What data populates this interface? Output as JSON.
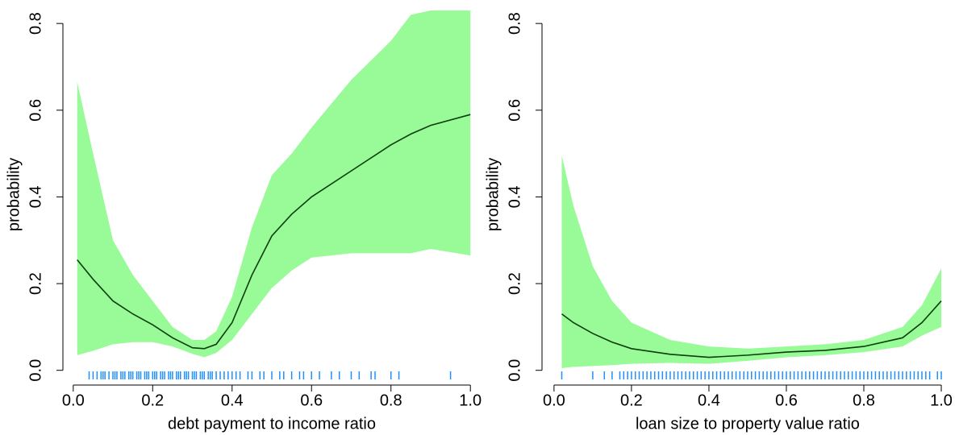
{
  "chart_data": [
    {
      "type": "line",
      "xlabel": "debt payment to income ratio",
      "ylabel": "probability",
      "xlim": [
        -0.026,
        1.028
      ],
      "ylim": [
        -0.034,
        0.83
      ],
      "xticks": [
        {
          "value": 0,
          "label": "0.0"
        },
        0.2,
        0.4,
        0.6,
        0.8,
        {
          "value": 1,
          "label": "1.0"
        }
      ],
      "yticks": [
        {
          "value": 0,
          "label": "0.0"
        },
        0.2,
        0.4,
        0.6,
        0.8
      ],
      "color": "#0b3d0b",
      "band_color": "#98fb98",
      "rug_color": "#1e90ff",
      "x": [
        0.01,
        0.05,
        0.1,
        0.15,
        0.2,
        0.25,
        0.3,
        0.33,
        0.36,
        0.4,
        0.45,
        0.5,
        0.55,
        0.6,
        0.7,
        0.8,
        0.85,
        0.9,
        1.0
      ],
      "values": [
        0.255,
        0.21,
        0.16,
        0.13,
        0.105,
        0.075,
        0.052,
        0.05,
        0.06,
        0.11,
        0.22,
        0.31,
        0.36,
        0.4,
        0.46,
        0.52,
        0.545,
        0.565,
        0.59
      ],
      "lower": [
        0.035,
        0.045,
        0.06,
        0.065,
        0.065,
        0.055,
        0.038,
        0.03,
        0.04,
        0.07,
        0.13,
        0.19,
        0.23,
        0.26,
        0.27,
        0.27,
        0.27,
        0.28,
        0.265
      ],
      "upper": [
        0.665,
        0.5,
        0.3,
        0.22,
        0.16,
        0.1,
        0.07,
        0.07,
        0.09,
        0.17,
        0.33,
        0.45,
        0.5,
        0.56,
        0.67,
        0.76,
        0.82,
        0.83,
        0.83
      ],
      "rug": [
        0.04,
        0.05,
        0.06,
        0.07,
        0.075,
        0.08,
        0.09,
        0.1,
        0.105,
        0.11,
        0.12,
        0.125,
        0.13,
        0.14,
        0.145,
        0.15,
        0.16,
        0.165,
        0.17,
        0.18,
        0.185,
        0.19,
        0.2,
        0.205,
        0.21,
        0.22,
        0.225,
        0.23,
        0.24,
        0.245,
        0.25,
        0.26,
        0.265,
        0.27,
        0.28,
        0.285,
        0.29,
        0.3,
        0.305,
        0.31,
        0.32,
        0.325,
        0.33,
        0.34,
        0.345,
        0.35,
        0.36,
        0.37,
        0.38,
        0.39,
        0.4,
        0.41,
        0.42,
        0.44,
        0.45,
        0.47,
        0.48,
        0.5,
        0.52,
        0.53,
        0.55,
        0.57,
        0.58,
        0.6,
        0.62,
        0.65,
        0.67,
        0.7,
        0.72,
        0.75,
        0.76,
        0.8,
        0.82,
        0.95
      ]
    },
    {
      "type": "line",
      "xlabel": "loan size to property value ratio",
      "ylabel": "probability",
      "xlim": [
        -0.031,
        1.027
      ],
      "ylim": [
        -0.034,
        0.83
      ],
      "xticks": [
        {
          "value": 0,
          "label": "0.0"
        },
        0.2,
        0.4,
        0.6,
        0.8,
        {
          "value": 1,
          "label": "1.0"
        }
      ],
      "yticks": [
        {
          "value": 0,
          "label": "0.0"
        },
        0.2,
        0.4,
        0.6,
        0.8
      ],
      "color": "#0b3d0b",
      "band_color": "#98fb98",
      "rug_color": "#1e90ff",
      "x": [
        0.02,
        0.05,
        0.1,
        0.15,
        0.2,
        0.3,
        0.4,
        0.5,
        0.6,
        0.7,
        0.8,
        0.9,
        0.95,
        1.0
      ],
      "values": [
        0.13,
        0.11,
        0.085,
        0.065,
        0.05,
        0.037,
        0.03,
        0.035,
        0.042,
        0.046,
        0.055,
        0.075,
        0.11,
        0.16
      ],
      "lower": [
        0.005,
        0.008,
        0.01,
        0.012,
        0.015,
        0.017,
        0.015,
        0.022,
        0.03,
        0.035,
        0.042,
        0.055,
        0.08,
        0.1
      ],
      "upper": [
        0.495,
        0.38,
        0.24,
        0.16,
        0.11,
        0.07,
        0.055,
        0.05,
        0.055,
        0.06,
        0.07,
        0.1,
        0.15,
        0.235
      ],
      "rug": [
        0.02,
        0.1,
        0.13,
        0.15,
        0.17,
        0.18,
        0.19,
        0.2,
        0.21,
        0.22,
        0.23,
        0.24,
        0.25,
        0.26,
        0.27,
        0.28,
        0.29,
        0.3,
        0.31,
        0.32,
        0.33,
        0.34,
        0.35,
        0.36,
        0.37,
        0.38,
        0.39,
        0.4,
        0.41,
        0.42,
        0.43,
        0.44,
        0.45,
        0.46,
        0.47,
        0.48,
        0.49,
        0.5,
        0.51,
        0.52,
        0.53,
        0.54,
        0.55,
        0.56,
        0.57,
        0.58,
        0.59,
        0.6,
        0.61,
        0.62,
        0.63,
        0.64,
        0.65,
        0.66,
        0.67,
        0.68,
        0.69,
        0.7,
        0.71,
        0.72,
        0.73,
        0.74,
        0.75,
        0.76,
        0.77,
        0.78,
        0.79,
        0.8,
        0.81,
        0.82,
        0.83,
        0.84,
        0.85,
        0.86,
        0.87,
        0.88,
        0.89,
        0.9,
        0.91,
        0.92,
        0.93,
        0.94,
        0.95,
        0.96,
        0.97,
        0.99,
        1.0
      ]
    }
  ]
}
